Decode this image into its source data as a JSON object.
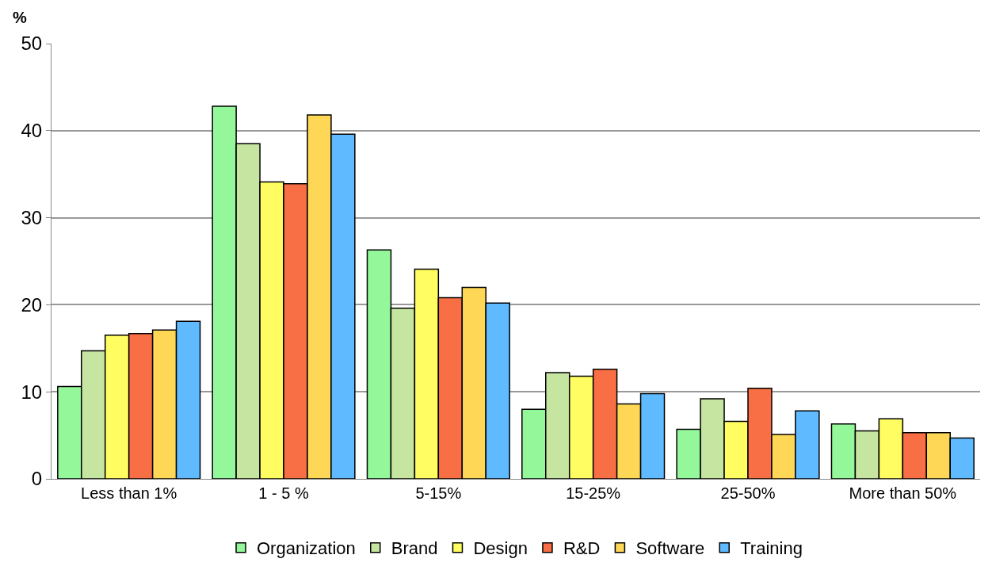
{
  "chart_data": {
    "type": "bar",
    "ylabel": "%",
    "categories": [
      "Less than 1%",
      "1 - 5 %",
      "5-15%",
      "15-25%",
      "25-50%",
      "More than 50%"
    ],
    "series": [
      {
        "name": "Organization",
        "color": "#94f89a",
        "values": [
          10.6,
          42.8,
          26.3,
          8.0,
          5.7,
          6.3
        ]
      },
      {
        "name": "Brand",
        "color": "#c6e5a0",
        "values": [
          14.7,
          38.5,
          19.6,
          12.2,
          9.2,
          5.5
        ]
      },
      {
        "name": "Design",
        "color": "#fffd62",
        "values": [
          16.5,
          34.1,
          24.1,
          11.8,
          6.6,
          6.9
        ]
      },
      {
        "name": "R&D",
        "color": "#f86f45",
        "values": [
          16.7,
          33.9,
          20.8,
          12.6,
          10.4,
          5.3
        ]
      },
      {
        "name": "Software",
        "color": "#fed756",
        "values": [
          17.1,
          41.8,
          22.0,
          8.6,
          5.1,
          5.3
        ]
      },
      {
        "name": "Training",
        "color": "#60baff",
        "values": [
          18.1,
          39.6,
          20.2,
          9.8,
          7.8,
          4.7
        ]
      }
    ],
    "ylim": [
      0,
      50
    ],
    "yticks": [
      0,
      10,
      20,
      30,
      40,
      50
    ],
    "grid": "y",
    "legend": "bottom"
  }
}
